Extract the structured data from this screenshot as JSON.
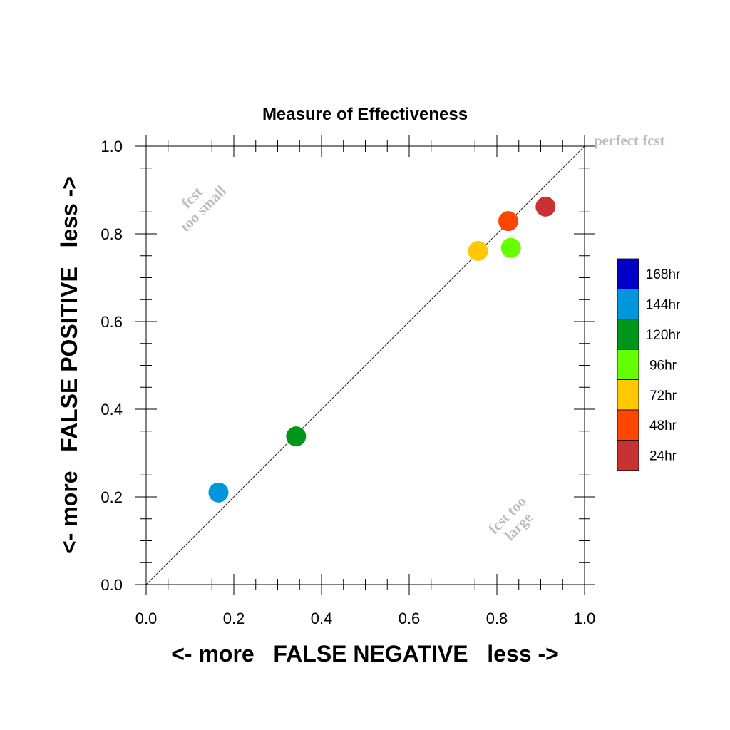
{
  "chart_data": {
    "type": "scatter",
    "title": "Measure of Effectiveness",
    "xlabel": "<- more   FALSE NEGATIVE   less ->",
    "ylabel": "<- more   FALSE POSITIVE   less ->",
    "xlim": [
      0,
      1
    ],
    "ylim": [
      0,
      1
    ],
    "xticks": [
      "0.0",
      "0.2",
      "0.4",
      "0.6",
      "0.8",
      "1.0"
    ],
    "yticks": [
      "0.0",
      "0.2",
      "0.4",
      "0.6",
      "0.8",
      "1.0"
    ],
    "diagonal_reference": true,
    "grid": false,
    "annotations": {
      "perfect": "perfect fcst",
      "small_line1": "fcst",
      "small_line2": "too small",
      "large_line1": "fcst too",
      "large_line2": "large"
    },
    "legend_position": "right",
    "series": [
      {
        "name": "168hr",
        "color": "#0000c8",
        "points": []
      },
      {
        "name": "144hr",
        "color": "#0096dc",
        "points": [
          [
            0.165,
            0.21
          ]
        ]
      },
      {
        "name": "120hr",
        "color": "#009619",
        "points": [
          [
            0.342,
            0.338
          ]
        ]
      },
      {
        "name": "96hr",
        "color": "#64ff00",
        "points": [
          [
            0.832,
            0.768
          ]
        ]
      },
      {
        "name": "72hr",
        "color": "#ffc800",
        "points": [
          [
            0.757,
            0.761
          ]
        ]
      },
      {
        "name": "48hr",
        "color": "#ff4600",
        "points": [
          [
            0.826,
            0.829
          ]
        ]
      },
      {
        "name": "24hr",
        "color": "#c83232",
        "points": [
          [
            0.911,
            0.862
          ]
        ]
      }
    ]
  }
}
